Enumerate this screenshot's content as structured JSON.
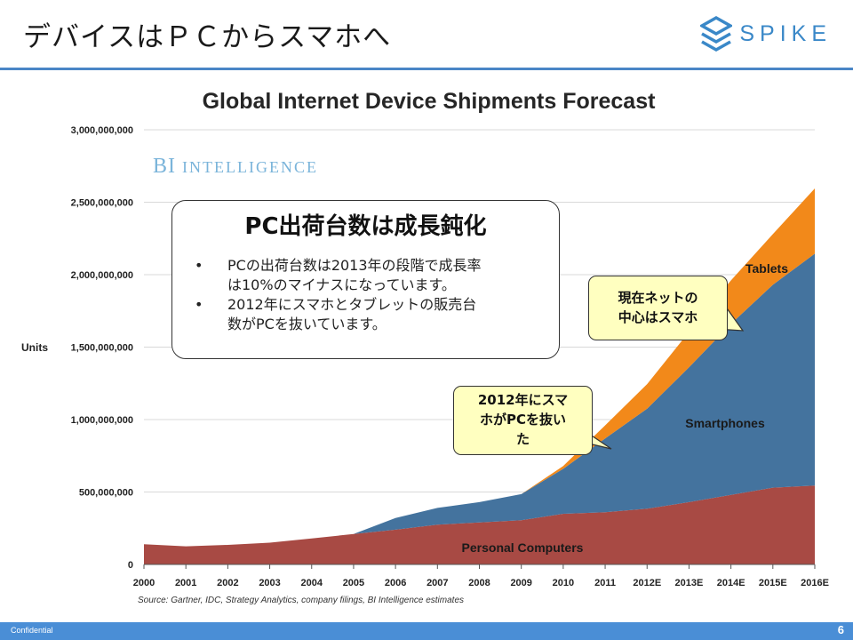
{
  "slide": {
    "title": "デバイスはＰＣからスマホへ",
    "logo_text": "SPIKE",
    "footer_label": "Confidential",
    "page_number": "6",
    "accent_color": "#4a86c6"
  },
  "overlay": {
    "bi_logo": {
      "prefix": "BI",
      "word": "Intelligence"
    },
    "note": {
      "heading": "PC出荷台数は成長鈍化",
      "bullet": "•",
      "items": [
        {
          "line1": "PCの出荷台数は2013年の段階で成長率",
          "line2": "は10%のマイナスになっています。"
        },
        {
          "line1": "2012年にスマホとタブレットの販売台",
          "line2": "数がPCを抜いています。"
        }
      ]
    },
    "callouts": [
      {
        "line1": "現在ネットの",
        "line2": "中心はスマホ",
        "line3": ""
      },
      {
        "line1": "2012年にスマ",
        "line2": "ホがPCを抜い",
        "line3": "た"
      }
    ]
  },
  "chart_data": {
    "type": "area",
    "stacked": true,
    "title": "Global Internet Device Shipments Forecast",
    "ylabel": "Units",
    "ylim": [
      0,
      3000000000
    ],
    "yticks": [
      0,
      500000000,
      1000000000,
      1500000000,
      2000000000,
      2500000000,
      3000000000
    ],
    "ytick_labels": [
      "0",
      "500,000,000",
      "1,000,000,000",
      "1,500,000,000",
      "2,000,000,000",
      "2,500,000,000",
      "3,000,000,000"
    ],
    "categories": [
      "2000",
      "2001",
      "2002",
      "2003",
      "2004",
      "2005",
      "2006",
      "2007",
      "2008",
      "2009",
      "2010",
      "2011",
      "2012E",
      "2013E",
      "2014E",
      "2015E",
      "2016E"
    ],
    "series": [
      {
        "name": "Personal Computers",
        "color": "#a84a44",
        "values": [
          140000000,
          125000000,
          135000000,
          150000000,
          180000000,
          210000000,
          240000000,
          275000000,
          290000000,
          305000000,
          350000000,
          360000000,
          385000000,
          430000000,
          480000000,
          530000000,
          545000000
        ]
      },
      {
        "name": "Smartphones",
        "color": "#44739e",
        "values": [
          0,
          0,
          0,
          0,
          0,
          0,
          80000000,
          115000000,
          140000000,
          180000000,
          310000000,
          510000000,
          690000000,
          930000000,
          1180000000,
          1400000000,
          1600000000
        ]
      },
      {
        "name": "Tablets",
        "color": "#f2891a",
        "values": [
          0,
          0,
          0,
          0,
          0,
          0,
          0,
          0,
          0,
          0,
          20000000,
          90000000,
          170000000,
          245000000,
          300000000,
          350000000,
          450000000
        ]
      }
    ],
    "grid": true,
    "source": "Source: Gartner, IDC, Strategy Analytics, company filings, BI Intelligence estimates"
  }
}
